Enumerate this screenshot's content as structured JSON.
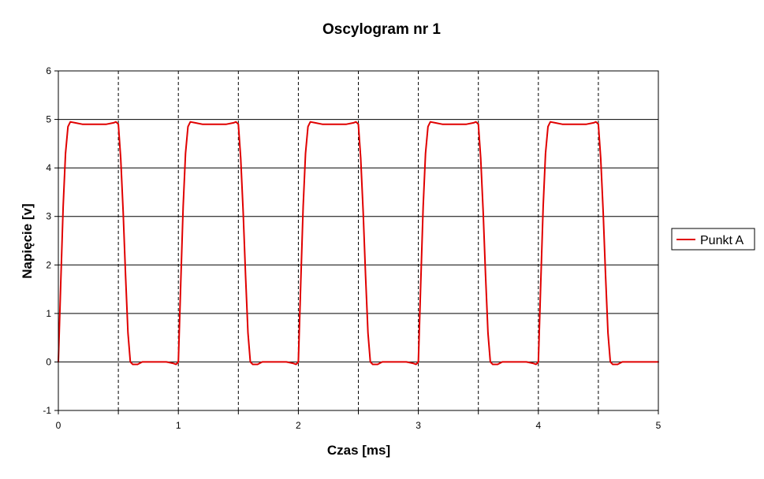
{
  "chart_data": {
    "type": "line",
    "title": "Oscylogram nr 1",
    "xlabel": "Czas [ms]",
    "ylabel": "Napięcie [v]",
    "xlim": [
      0,
      5
    ],
    "ylim": [
      -1,
      6
    ],
    "x_ticks": [
      "0",
      "1",
      "2",
      "3",
      "4",
      "5"
    ],
    "y_ticks": [
      "-1",
      "0",
      "1",
      "2",
      "3",
      "4",
      "5",
      "6"
    ],
    "grid": "horizontal solid, vertical dashed every 0.5 ms",
    "legend_position": "right",
    "colors": {
      "series": "#e00000",
      "grid": "#000000",
      "background": "#ffffff"
    },
    "series": [
      {
        "name": "Punkt A",
        "x": [
          0,
          0.02,
          0.04,
          0.06,
          0.08,
          0.1,
          0.14,
          0.2,
          0.3,
          0.4,
          0.46,
          0.48,
          0.5,
          0.52,
          0.54,
          0.56,
          0.58,
          0.6,
          0.62,
          0.66,
          0.7,
          0.8,
          0.9,
          0.96,
          0.98,
          1.0,
          1.02,
          1.04,
          1.06,
          1.08,
          1.1,
          1.14,
          1.2,
          1.3,
          1.4,
          1.46,
          1.48,
          1.5,
          1.52,
          1.54,
          1.56,
          1.58,
          1.6,
          1.62,
          1.66,
          1.7,
          1.8,
          1.9,
          1.96,
          1.98,
          2.0,
          2.02,
          2.04,
          2.06,
          2.08,
          2.1,
          2.14,
          2.2,
          2.3,
          2.4,
          2.46,
          2.48,
          2.5,
          2.52,
          2.54,
          2.56,
          2.58,
          2.6,
          2.62,
          2.66,
          2.7,
          2.8,
          2.9,
          2.96,
          2.98,
          3.0,
          3.02,
          3.04,
          3.06,
          3.08,
          3.1,
          3.14,
          3.2,
          3.3,
          3.4,
          3.46,
          3.48,
          3.5,
          3.52,
          3.54,
          3.56,
          3.58,
          3.6,
          3.62,
          3.66,
          3.7,
          3.8,
          3.9,
          3.96,
          3.98,
          4.0,
          4.02,
          4.04,
          4.06,
          4.08,
          4.1,
          4.14,
          4.2,
          4.3,
          4.4,
          4.46,
          4.48,
          4.5,
          4.52,
          4.54,
          4.56,
          4.58,
          4.6,
          4.62,
          4.66,
          4.7,
          4.8,
          4.9,
          5.0
        ],
        "y": [
          0.0,
          1.6,
          3.2,
          4.3,
          4.85,
          4.95,
          4.93,
          4.9,
          4.9,
          4.9,
          4.93,
          4.95,
          4.9,
          4.2,
          3.1,
          1.8,
          0.6,
          0.0,
          -0.05,
          -0.05,
          0.0,
          0.0,
          0.0,
          -0.03,
          -0.05,
          0.0,
          1.6,
          3.2,
          4.3,
          4.85,
          4.95,
          4.93,
          4.9,
          4.9,
          4.9,
          4.93,
          4.95,
          4.9,
          4.2,
          3.1,
          1.8,
          0.6,
          0.0,
          -0.05,
          -0.05,
          0.0,
          0.0,
          0.0,
          -0.03,
          -0.05,
          0.0,
          1.6,
          3.2,
          4.3,
          4.85,
          4.95,
          4.93,
          4.9,
          4.9,
          4.9,
          4.93,
          4.95,
          4.9,
          4.2,
          3.1,
          1.8,
          0.6,
          0.0,
          -0.05,
          -0.05,
          0.0,
          0.0,
          0.0,
          -0.03,
          -0.05,
          0.0,
          1.6,
          3.2,
          4.3,
          4.85,
          4.95,
          4.93,
          4.9,
          4.9,
          4.9,
          4.93,
          4.95,
          4.9,
          4.2,
          3.1,
          1.8,
          0.6,
          0.0,
          -0.05,
          -0.05,
          0.0,
          0.0,
          0.0,
          -0.03,
          -0.05,
          0.0,
          1.6,
          3.2,
          4.3,
          4.85,
          4.95,
          4.93,
          4.9,
          4.9,
          4.9,
          4.93,
          4.95,
          4.9,
          4.2,
          3.1,
          1.8,
          0.6,
          0.0,
          -0.05,
          -0.05,
          0.0,
          0.0,
          0.0,
          0.0
        ]
      }
    ]
  }
}
